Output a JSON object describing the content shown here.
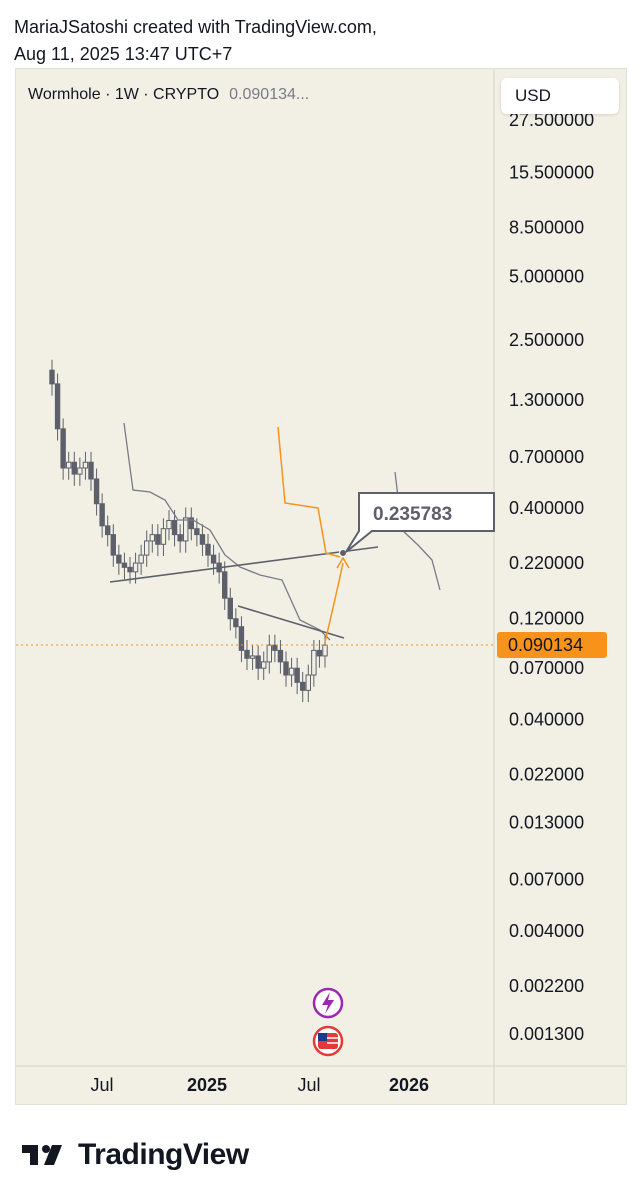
{
  "header": {
    "line1": "MariaJSatoshi created with TradingView.com,",
    "line2": "Aug 11, 2025 13:47 UTC+7"
  },
  "legend": {
    "symbol": "Wormhole · 1W · CRYPTO",
    "price": "0.090134..."
  },
  "currency_button": "USD",
  "chart_data": {
    "type": "candlestick",
    "scale": "log",
    "current_price": 0.090134,
    "current_price_label": "0.090134",
    "target_label": "0.235783",
    "price_axis_labels": [
      "27.500000",
      "15.500000",
      "8.500000",
      "5.000000",
      "2.500000",
      "1.300000",
      "0.700000",
      "0.400000",
      "0.220000",
      "0.120000",
      "0.070000",
      "0.040000",
      "0.022000",
      "0.013000",
      "0.007000",
      "0.004000",
      "0.002200",
      "0.001300"
    ],
    "time_axis_labels": [
      {
        "label": "Jul",
        "bold": false
      },
      {
        "label": "2025",
        "bold": true
      },
      {
        "label": "Jul",
        "bold": false
      },
      {
        "label": "2026",
        "bold": true
      }
    ],
    "candles_close_estimate": [
      1.55,
      0.95,
      0.62,
      0.66,
      0.58,
      0.62,
      0.66,
      0.55,
      0.42,
      0.33,
      0.3,
      0.24,
      0.22,
      0.21,
      0.2,
      0.22,
      0.24,
      0.28,
      0.3,
      0.27,
      0.32,
      0.35,
      0.3,
      0.28,
      0.36,
      0.32,
      0.3,
      0.27,
      0.24,
      0.22,
      0.2,
      0.15,
      0.12,
      0.11,
      0.085,
      0.078,
      0.08,
      0.07,
      0.075,
      0.09,
      0.085,
      0.075,
      0.065,
      0.07,
      0.06,
      0.055,
      0.065,
      0.085,
      0.08,
      0.09
    ],
    "colors": {
      "up": "#f2f0e5",
      "down": "#5d606b",
      "orange": "#f7931a",
      "line": "#787b86",
      "grid": "#e6e4d9"
    }
  },
  "footer": {
    "brand": "TradingView"
  }
}
